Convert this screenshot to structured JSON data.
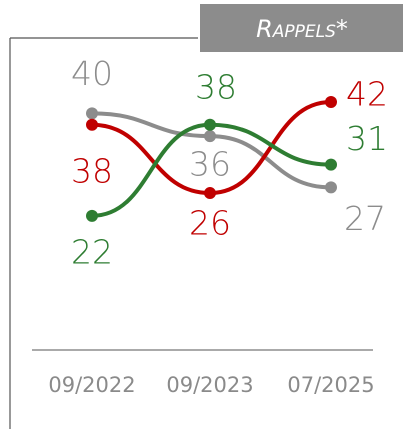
{
  "chart_data": {
    "type": "line",
    "title": "Rappels*",
    "categories": [
      "09/2022",
      "09/2023",
      "07/2025"
    ],
    "series": [
      {
        "color": "#8c8c8c",
        "values": [
          40,
          36,
          27
        ]
      },
      {
        "color": "#c00000",
        "values": [
          38,
          26,
          42
        ]
      },
      {
        "color": "#2e7d32",
        "values": [
          22,
          38,
          31
        ]
      }
    ]
  }
}
